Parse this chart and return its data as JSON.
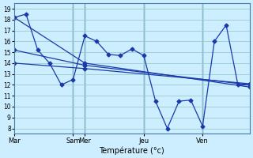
{
  "background_color": "#cceeff",
  "grid_color": "#99cccc",
  "line_color": "#1a3aaa",
  "xlabel": "Température (°c)",
  "ylim": [
    7.5,
    19.5
  ],
  "yticks": [
    8,
    9,
    10,
    11,
    12,
    13,
    14,
    15,
    16,
    17,
    18,
    19
  ],
  "xlim": [
    0,
    40
  ],
  "vline_positions": [
    10,
    12,
    22,
    32
  ],
  "xtick_positions": [
    0,
    10,
    12,
    22,
    32
  ],
  "xtick_labels": [
    "Mar",
    "Sam",
    "Mer",
    "Jeu",
    "Ven"
  ],
  "series": [
    {
      "x": [
        0,
        2,
        4,
        6,
        8,
        10,
        12,
        14,
        16,
        18,
        20,
        22,
        24,
        26,
        28,
        30,
        32,
        34,
        36,
        38,
        40
      ],
      "y": [
        18.2,
        18.5,
        15.2,
        14.0,
        12.0,
        12.5,
        16.5,
        16.0,
        14.8,
        14.7,
        15.3,
        14.7,
        10.5,
        8.0,
        10.5,
        10.6,
        8.2,
        16.0,
        17.5,
        12.0,
        12.0
      ],
      "linestyle": "-",
      "marker": "D",
      "linewidth": 0.9,
      "markersize": 2.5
    },
    {
      "x": [
        0,
        12,
        40
      ],
      "y": [
        18.2,
        14.0,
        11.8
      ],
      "linestyle": "-",
      "marker": "D",
      "linewidth": 0.9,
      "markersize": 2.5
    },
    {
      "x": [
        0,
        12,
        40
      ],
      "y": [
        15.2,
        13.8,
        12.0
      ],
      "linestyle": "-",
      "marker": "D",
      "linewidth": 0.9,
      "markersize": 2.5
    },
    {
      "x": [
        0,
        12,
        40
      ],
      "y": [
        14.0,
        13.5,
        12.1
      ],
      "linestyle": "-",
      "marker": "D",
      "linewidth": 0.9,
      "markersize": 2.5
    }
  ]
}
